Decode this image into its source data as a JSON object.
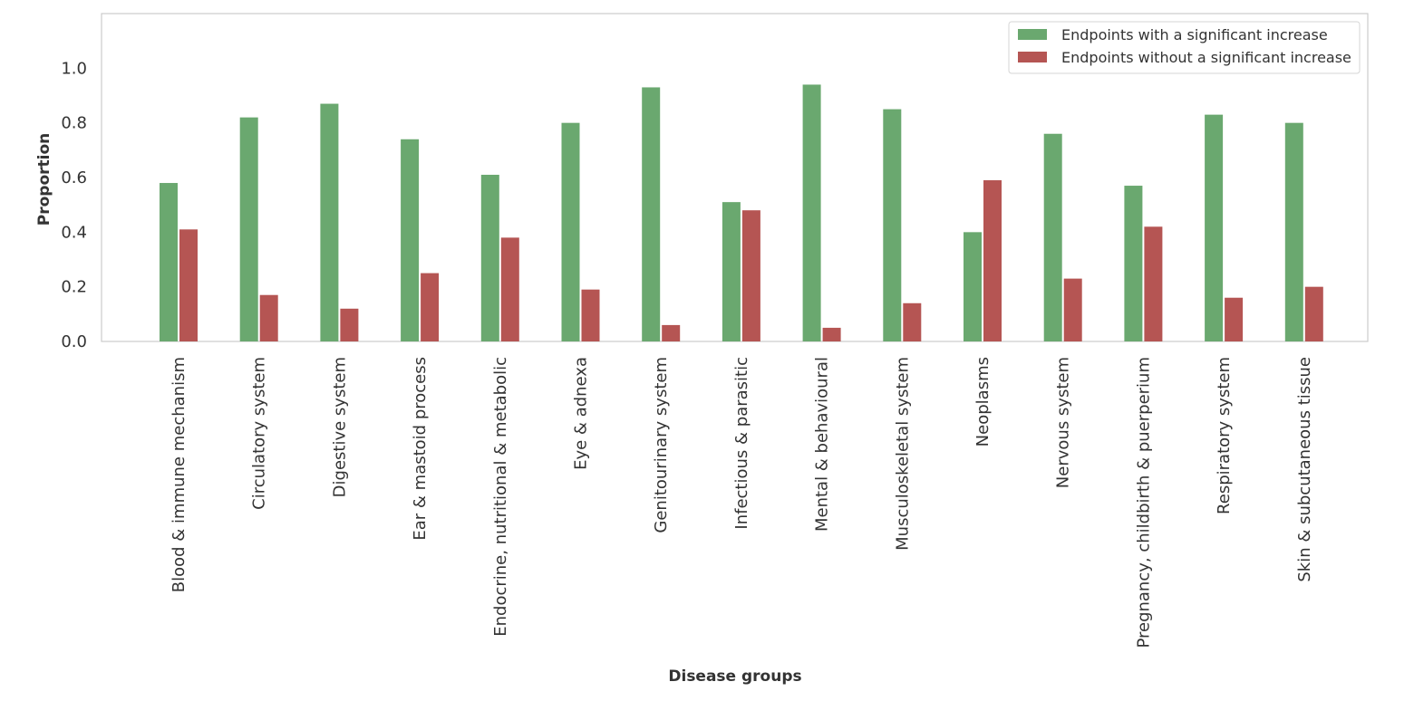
{
  "chart_data": {
    "type": "bar",
    "title": "",
    "xlabel": "Disease groups",
    "ylabel": "Proportion",
    "ylim": [
      0,
      1.2
    ],
    "yticks": [
      "0.0",
      "0.2",
      "0.4",
      "0.6",
      "0.8",
      "1.0"
    ],
    "grid": false,
    "legend_position": "top-right",
    "categories": [
      "Blood & immune mechanism",
      "Circulatory system",
      "Digestive system",
      "Ear & mastoid process",
      "Endocrine, nutritional & metabolic",
      "Eye & adnexa",
      "Genitourinary system",
      "Infectious & parasitic",
      "Mental & behavioural",
      "Musculoskeletal system",
      "Neoplasms",
      "Nervous system",
      "Pregnancy, childbirth & puerperium",
      "Respiratory system",
      "Skin & subcutaneous tissue"
    ],
    "series": [
      {
        "name": "Endpoints with a significant increase",
        "color": "#6aa86f",
        "values": [
          0.58,
          0.82,
          0.87,
          0.74,
          0.61,
          0.8,
          0.93,
          0.51,
          0.94,
          0.85,
          0.4,
          0.76,
          0.57,
          0.83,
          0.8
        ]
      },
      {
        "name": "Endpoints without a significant increase",
        "color": "#b55553",
        "values": [
          0.41,
          0.17,
          0.12,
          0.25,
          0.38,
          0.19,
          0.06,
          0.48,
          0.05,
          0.14,
          0.59,
          0.23,
          0.42,
          0.16,
          0.2
        ]
      }
    ]
  }
}
